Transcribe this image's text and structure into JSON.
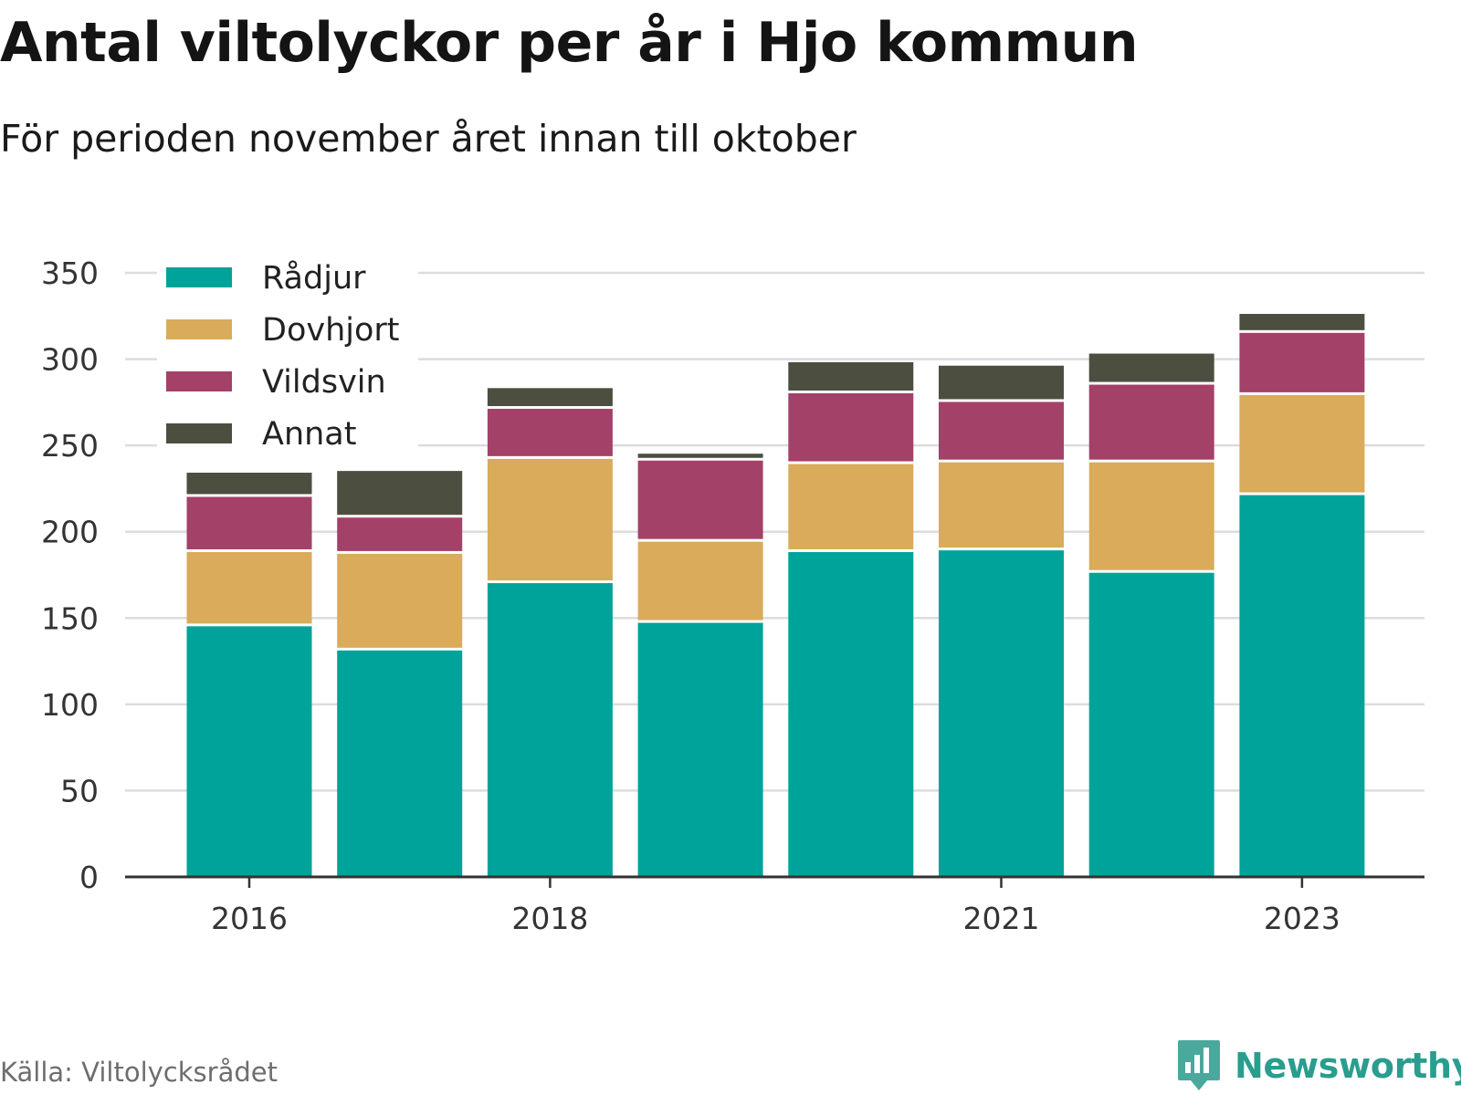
{
  "chart_data": {
    "type": "bar",
    "stacked": true,
    "title": "Antal viltolyckor per år i Hjo kommun",
    "subtitle": "För perioden november året innan till oktober",
    "categories": [
      "2016",
      "2017",
      "2018",
      "2019",
      "2020",
      "2021",
      "2022",
      "2023"
    ],
    "tick_labels": [
      "2016",
      "",
      "2018",
      "",
      "",
      "2021",
      "",
      "2023"
    ],
    "series": [
      {
        "name": "Rådjur",
        "color": "#00a39a",
        "values": [
          146,
          132,
          171,
          148,
          189,
          190,
          177,
          222
        ]
      },
      {
        "name": "Dovhjort",
        "color": "#d9ab5a",
        "values": [
          43,
          56,
          72,
          47,
          51,
          51,
          64,
          58
        ]
      },
      {
        "name": "Vildsvin",
        "color": "#a34169",
        "values": [
          32,
          21,
          29,
          47,
          41,
          35,
          45,
          36
        ]
      },
      {
        "name": "Annat",
        "color": "#4c4e3f",
        "values": [
          14,
          27,
          12,
          4,
          18,
          21,
          18,
          11
        ]
      }
    ],
    "yticks": [
      0,
      50,
      100,
      150,
      200,
      250,
      300,
      350
    ],
    "ylim": [
      0,
      350
    ],
    "grid": true,
    "legend": "top-left"
  },
  "footer": {
    "source": "Källa: Viltolycksrådet",
    "brand": "Newsworthy",
    "logo_icon": "bar-chart-speech-bubble-icon"
  }
}
